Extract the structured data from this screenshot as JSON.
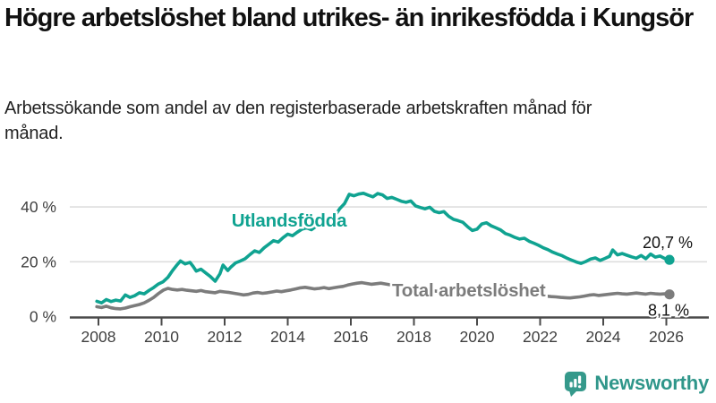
{
  "header": {
    "title": "Högre arbetslöshet bland utrikes- än inrikesfödda i Kungsör",
    "subtitle": "Arbetssökande som andel av den registerbaserade arbetskraften månad för månad."
  },
  "chart_data": {
    "type": "line",
    "title": "Högre arbetslöshet bland utrikes- än inrikesfödda i Kungsör",
    "subtitle": "Arbetssökande som andel av den registerbaserade arbetskraften månad för månad.",
    "x_axis": {
      "ticks": [
        2008,
        2010,
        2012,
        2014,
        2016,
        2018,
        2020,
        2022,
        2024,
        2026
      ],
      "labels": [
        "2008",
        "2010",
        "2012",
        "2014",
        "2016",
        "2018",
        "2020",
        "2022",
        "2024",
        "2026"
      ],
      "range": [
        2007.9,
        2026.4
      ]
    },
    "y_axis": {
      "ticks": [
        0,
        20,
        40
      ],
      "labels": [
        "0 %",
        "20 %",
        "40 %"
      ],
      "range": [
        0,
        47
      ],
      "unit": "%"
    },
    "grid": "horizontal",
    "legend_position": "inline-labels",
    "series": [
      {
        "name": "Utlandsfödda",
        "color": "#10A391",
        "end_label": "20,7 %",
        "end_value": 20.7,
        "points": [
          [
            2007.95,
            5.6
          ],
          [
            2008.1,
            5.0
          ],
          [
            2008.25,
            6.2
          ],
          [
            2008.4,
            5.5
          ],
          [
            2008.55,
            6.0
          ],
          [
            2008.7,
            5.7
          ],
          [
            2008.85,
            7.9
          ],
          [
            2009.0,
            7.0
          ],
          [
            2009.15,
            7.6
          ],
          [
            2009.3,
            8.7
          ],
          [
            2009.45,
            8.3
          ],
          [
            2009.6,
            9.5
          ],
          [
            2009.75,
            10.6
          ],
          [
            2009.9,
            11.9
          ],
          [
            2010.05,
            12.7
          ],
          [
            2010.2,
            14.3
          ],
          [
            2010.35,
            16.8
          ],
          [
            2010.5,
            19.0
          ],
          [
            2010.6,
            20.3
          ],
          [
            2010.75,
            19.2
          ],
          [
            2010.9,
            19.8
          ],
          [
            2011.0,
            18.3
          ],
          [
            2011.1,
            16.6
          ],
          [
            2011.25,
            17.3
          ],
          [
            2011.4,
            15.9
          ],
          [
            2011.55,
            14.6
          ],
          [
            2011.7,
            12.9
          ],
          [
            2011.85,
            15.6
          ],
          [
            2011.95,
            18.8
          ],
          [
            2012.1,
            16.8
          ],
          [
            2012.2,
            18.1
          ],
          [
            2012.35,
            19.6
          ],
          [
            2012.5,
            20.3
          ],
          [
            2012.65,
            21.1
          ],
          [
            2012.8,
            22.6
          ],
          [
            2012.95,
            24.0
          ],
          [
            2013.1,
            23.4
          ],
          [
            2013.25,
            25.1
          ],
          [
            2013.4,
            26.4
          ],
          [
            2013.55,
            27.7
          ],
          [
            2013.7,
            27.2
          ],
          [
            2013.85,
            28.8
          ],
          [
            2014.0,
            30.1
          ],
          [
            2014.15,
            29.5
          ],
          [
            2014.3,
            30.8
          ],
          [
            2014.45,
            31.9
          ],
          [
            2014.6,
            32.4
          ],
          [
            2014.75,
            31.7
          ],
          [
            2014.9,
            32.9
          ],
          [
            2015.05,
            33.8
          ],
          [
            2015.2,
            34.7
          ],
          [
            2015.35,
            35.3
          ],
          [
            2015.5,
            36.9
          ],
          [
            2015.65,
            39.4
          ],
          [
            2015.8,
            41.2
          ],
          [
            2015.95,
            44.6
          ],
          [
            2016.1,
            44.1
          ],
          [
            2016.25,
            44.7
          ],
          [
            2016.4,
            45.0
          ],
          [
            2016.55,
            44.3
          ],
          [
            2016.7,
            43.7
          ],
          [
            2016.85,
            44.9
          ],
          [
            2017.0,
            44.4
          ],
          [
            2017.15,
            43.1
          ],
          [
            2017.3,
            43.5
          ],
          [
            2017.45,
            42.8
          ],
          [
            2017.6,
            42.1
          ],
          [
            2017.75,
            41.7
          ],
          [
            2017.9,
            42.2
          ],
          [
            2018.05,
            40.4
          ],
          [
            2018.2,
            39.8
          ],
          [
            2018.35,
            39.3
          ],
          [
            2018.5,
            39.9
          ],
          [
            2018.65,
            38.4
          ],
          [
            2018.8,
            37.9
          ],
          [
            2018.95,
            38.3
          ],
          [
            2019.1,
            36.6
          ],
          [
            2019.25,
            35.5
          ],
          [
            2019.4,
            35.0
          ],
          [
            2019.55,
            34.4
          ],
          [
            2019.7,
            32.8
          ],
          [
            2019.85,
            31.4
          ],
          [
            2020.0,
            31.9
          ],
          [
            2020.15,
            33.8
          ],
          [
            2020.3,
            34.2
          ],
          [
            2020.45,
            33.1
          ],
          [
            2020.6,
            32.4
          ],
          [
            2020.75,
            31.6
          ],
          [
            2020.9,
            30.3
          ],
          [
            2021.05,
            29.7
          ],
          [
            2021.2,
            28.9
          ],
          [
            2021.35,
            28.3
          ],
          [
            2021.5,
            28.6
          ],
          [
            2021.65,
            27.5
          ],
          [
            2021.8,
            26.8
          ],
          [
            2021.95,
            26.0
          ],
          [
            2022.1,
            25.1
          ],
          [
            2022.25,
            24.4
          ],
          [
            2022.4,
            23.5
          ],
          [
            2022.55,
            22.8
          ],
          [
            2022.7,
            22.2
          ],
          [
            2022.85,
            21.3
          ],
          [
            2023.0,
            20.6
          ],
          [
            2023.15,
            19.9
          ],
          [
            2023.3,
            19.4
          ],
          [
            2023.45,
            20.1
          ],
          [
            2023.6,
            21.0
          ],
          [
            2023.75,
            21.4
          ],
          [
            2023.9,
            20.5
          ],
          [
            2024.05,
            21.2
          ],
          [
            2024.2,
            22.0
          ],
          [
            2024.3,
            24.3
          ],
          [
            2024.45,
            22.5
          ],
          [
            2024.6,
            23.0
          ],
          [
            2024.75,
            22.4
          ],
          [
            2024.9,
            21.8
          ],
          [
            2025.05,
            21.3
          ],
          [
            2025.2,
            22.3
          ],
          [
            2025.35,
            21.1
          ],
          [
            2025.5,
            22.8
          ],
          [
            2025.65,
            21.7
          ],
          [
            2025.8,
            22.1
          ],
          [
            2025.95,
            21.2
          ],
          [
            2026.1,
            20.7
          ]
        ]
      },
      {
        "name": "Total arbetslöshet",
        "color": "#7C7C7C",
        "end_label": "8,1 %",
        "end_value": 8.1,
        "points": [
          [
            2007.95,
            3.6
          ],
          [
            2008.1,
            3.3
          ],
          [
            2008.25,
            3.8
          ],
          [
            2008.4,
            3.2
          ],
          [
            2008.55,
            2.9
          ],
          [
            2008.7,
            2.8
          ],
          [
            2008.85,
            3.1
          ],
          [
            2009.0,
            3.6
          ],
          [
            2009.15,
            4.0
          ],
          [
            2009.3,
            4.4
          ],
          [
            2009.45,
            5.0
          ],
          [
            2009.6,
            5.9
          ],
          [
            2009.75,
            7.0
          ],
          [
            2009.9,
            8.4
          ],
          [
            2010.05,
            9.6
          ],
          [
            2010.2,
            10.3
          ],
          [
            2010.35,
            9.9
          ],
          [
            2010.5,
            9.7
          ],
          [
            2010.65,
            9.9
          ],
          [
            2010.8,
            9.6
          ],
          [
            2010.95,
            9.4
          ],
          [
            2011.1,
            9.2
          ],
          [
            2011.25,
            9.5
          ],
          [
            2011.4,
            9.1
          ],
          [
            2011.55,
            8.9
          ],
          [
            2011.7,
            8.7
          ],
          [
            2011.85,
            9.2
          ],
          [
            2012.0,
            9.0
          ],
          [
            2012.15,
            8.8
          ],
          [
            2012.3,
            8.5
          ],
          [
            2012.45,
            8.2
          ],
          [
            2012.6,
            7.9
          ],
          [
            2012.75,
            8.1
          ],
          [
            2012.9,
            8.6
          ],
          [
            2013.05,
            8.8
          ],
          [
            2013.2,
            8.5
          ],
          [
            2013.35,
            8.7
          ],
          [
            2013.5,
            9.0
          ],
          [
            2013.65,
            9.3
          ],
          [
            2013.8,
            9.1
          ],
          [
            2013.95,
            9.4
          ],
          [
            2014.1,
            9.7
          ],
          [
            2014.25,
            10.1
          ],
          [
            2014.4,
            10.5
          ],
          [
            2014.55,
            10.7
          ],
          [
            2014.7,
            10.4
          ],
          [
            2014.85,
            10.1
          ],
          [
            2015.0,
            10.3
          ],
          [
            2015.15,
            10.6
          ],
          [
            2015.3,
            10.2
          ],
          [
            2015.45,
            10.5
          ],
          [
            2015.6,
            10.8
          ],
          [
            2015.75,
            11.0
          ],
          [
            2015.9,
            11.5
          ],
          [
            2016.05,
            11.9
          ],
          [
            2016.2,
            12.2
          ],
          [
            2016.35,
            12.4
          ],
          [
            2016.5,
            12.1
          ],
          [
            2016.65,
            11.8
          ],
          [
            2016.8,
            12.0
          ],
          [
            2016.95,
            12.2
          ],
          [
            2017.1,
            11.9
          ],
          [
            2017.25,
            11.6
          ],
          [
            2017.4,
            11.3
          ],
          [
            2017.55,
            11.0
          ],
          [
            2017.7,
            10.8
          ],
          [
            2017.85,
            10.6
          ],
          [
            2018.0,
            10.3
          ],
          [
            2018.15,
            10.0
          ],
          [
            2018.3,
            9.8
          ],
          [
            2018.45,
            9.6
          ],
          [
            2018.6,
            9.4
          ],
          [
            2018.75,
            9.2
          ],
          [
            2018.9,
            9.5
          ],
          [
            2019.05,
            9.2
          ],
          [
            2019.2,
            9.0
          ],
          [
            2019.35,
            8.8
          ],
          [
            2019.5,
            8.7
          ],
          [
            2019.65,
            8.5
          ],
          [
            2019.8,
            8.7
          ],
          [
            2019.95,
            9.0
          ],
          [
            2020.1,
            9.6
          ],
          [
            2020.25,
            10.2
          ],
          [
            2020.4,
            10.5
          ],
          [
            2020.55,
            10.2
          ],
          [
            2020.7,
            10.0
          ],
          [
            2020.85,
            9.7
          ],
          [
            2021.0,
            9.4
          ],
          [
            2021.15,
            9.1
          ],
          [
            2021.3,
            8.8
          ],
          [
            2021.45,
            8.6
          ],
          [
            2021.6,
            8.3
          ],
          [
            2021.75,
            8.1
          ],
          [
            2021.9,
            7.9
          ],
          [
            2022.05,
            7.7
          ],
          [
            2022.2,
            7.5
          ],
          [
            2022.35,
            7.3
          ],
          [
            2022.5,
            7.2
          ],
          [
            2022.65,
            7.0
          ],
          [
            2022.8,
            6.9
          ],
          [
            2022.95,
            6.8
          ],
          [
            2023.1,
            7.0
          ],
          [
            2023.25,
            7.2
          ],
          [
            2023.4,
            7.5
          ],
          [
            2023.55,
            7.8
          ],
          [
            2023.7,
            8.0
          ],
          [
            2023.85,
            7.7
          ],
          [
            2024.0,
            7.9
          ],
          [
            2024.15,
            8.1
          ],
          [
            2024.3,
            8.3
          ],
          [
            2024.45,
            8.5
          ],
          [
            2024.6,
            8.3
          ],
          [
            2024.75,
            8.2
          ],
          [
            2024.9,
            8.4
          ],
          [
            2025.05,
            8.6
          ],
          [
            2025.2,
            8.4
          ],
          [
            2025.35,
            8.2
          ],
          [
            2025.5,
            8.5
          ],
          [
            2025.65,
            8.3
          ],
          [
            2025.8,
            8.2
          ],
          [
            2025.95,
            8.3
          ],
          [
            2026.1,
            8.1
          ]
        ]
      }
    ]
  },
  "footer": {
    "brand": "Newsworthy",
    "brand_color": "#2F968A",
    "logo_icon": "bar-chart-speech-bubble-icon"
  }
}
